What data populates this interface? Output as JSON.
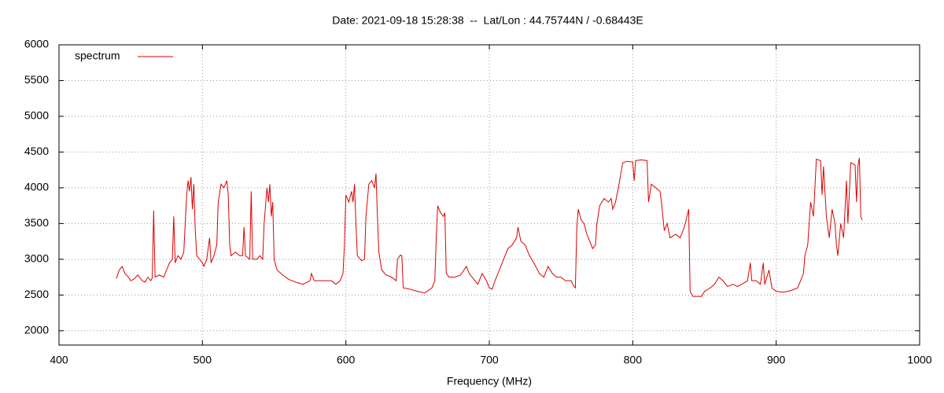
{
  "chart_data": {
    "type": "line",
    "title": "Date: 2021-09-18 15:28:38  --  Lat/Lon : 44.75744N / -0.68443E",
    "xlabel": "Frequency (MHz)",
    "xlim": [
      400,
      1000
    ],
    "xticks": [
      400,
      500,
      600,
      700,
      800,
      900,
      1000
    ],
    "ylim": [
      1800,
      6000
    ],
    "yticks": [
      2000,
      2500,
      3000,
      3500,
      4000,
      4500,
      5000,
      5500,
      6000
    ],
    "grid": true,
    "legend": "top left",
    "x": [
      440,
      442,
      444,
      446,
      448,
      450,
      452,
      455,
      458,
      460,
      462,
      464,
      465,
      466,
      467,
      470,
      473,
      475,
      477,
      479,
      480,
      481,
      483,
      485,
      487,
      488,
      489,
      490,
      491,
      492,
      493,
      494,
      495,
      496,
      498,
      500,
      501,
      503,
      505,
      506,
      508,
      510,
      511,
      513,
      515,
      517,
      518,
      519,
      520,
      523,
      526,
      528,
      529,
      530,
      533,
      534,
      535,
      538,
      540,
      542,
      543,
      544,
      545,
      546,
      547,
      548,
      549,
      550,
      552,
      556,
      560,
      565,
      570,
      575,
      576,
      578,
      585,
      590,
      593,
      596,
      598,
      599,
      600,
      602,
      604,
      605,
      606,
      607,
      608,
      611,
      613,
      614,
      616,
      618,
      620,
      621,
      622,
      623,
      625,
      628,
      632,
      635,
      636,
      638,
      639,
      640,
      645,
      650,
      655,
      660,
      662,
      663,
      664,
      666,
      668,
      669,
      670,
      672,
      676,
      680,
      684,
      686,
      690,
      692,
      695,
      698,
      700,
      702,
      704,
      707,
      710,
      713,
      716,
      719,
      720,
      722,
      725,
      728,
      731,
      735,
      738,
      741,
      744,
      747,
      750,
      753,
      757,
      759,
      760,
      761,
      762,
      764,
      766,
      768,
      770,
      772,
      774,
      775,
      777,
      780,
      783,
      785,
      786,
      788,
      790,
      793,
      796,
      800,
      801,
      802,
      806,
      810,
      811,
      813,
      816,
      819,
      820,
      822,
      824,
      826,
      830,
      833,
      836,
      839,
      840,
      842,
      845,
      848,
      850,
      854,
      857,
      860,
      863,
      866,
      870,
      873,
      876,
      880,
      882,
      883,
      886,
      889,
      891,
      892,
      895,
      897,
      900,
      905,
      910,
      915,
      919,
      920,
      922,
      924,
      926,
      928,
      931,
      932,
      933,
      935,
      937,
      939,
      941,
      942,
      943,
      945,
      947,
      949,
      950,
      952,
      955,
      956,
      957,
      958,
      959,
      960
    ],
    "series": [
      {
        "name": "spectrum",
        "color": "#dd0000",
        "values": [
          2730,
          2850,
          2900,
          2800,
          2760,
          2700,
          2720,
          2780,
          2700,
          2680,
          2750,
          2700,
          2740,
          3680,
          2750,
          2780,
          2750,
          2850,
          2950,
          3000,
          3600,
          2950,
          3050,
          3000,
          3100,
          3500,
          3900,
          4100,
          3950,
          4150,
          3700,
          4050,
          3400,
          3050,
          3000,
          2950,
          2900,
          3000,
          3300,
          2950,
          3050,
          3200,
          3800,
          4050,
          4000,
          4100,
          3900,
          3200,
          3050,
          3100,
          3050,
          3050,
          3450,
          3050,
          3000,
          3950,
          3000,
          3000,
          3050,
          3000,
          3500,
          3750,
          4000,
          3800,
          4050,
          3600,
          3800,
          3000,
          2850,
          2780,
          2720,
          2680,
          2650,
          2700,
          2800,
          2700,
          2700,
          2700,
          2650,
          2700,
          2800,
          3200,
          3900,
          3800,
          3950,
          3800,
          4050,
          3500,
          3050,
          2980,
          3000,
          3600,
          4050,
          4100,
          4000,
          4200,
          3600,
          3100,
          2850,
          2780,
          2750,
          2700,
          3000,
          3060,
          3050,
          2600,
          2580,
          2550,
          2530,
          2600,
          2700,
          3300,
          3750,
          3650,
          3600,
          3650,
          2800,
          2750,
          2750,
          2780,
          2900,
          2800,
          2700,
          2650,
          2800,
          2700,
          2600,
          2580,
          2700,
          2850,
          3000,
          3150,
          3200,
          3300,
          3450,
          3250,
          3200,
          3050,
          2950,
          2800,
          2750,
          2900,
          2800,
          2750,
          2750,
          2700,
          2700,
          2620,
          2600,
          3450,
          3700,
          3550,
          3500,
          3350,
          3250,
          3150,
          3200,
          3500,
          3750,
          3850,
          3800,
          3850,
          3700,
          3800,
          4000,
          4350,
          4370,
          4360,
          4100,
          4380,
          4390,
          4380,
          3800,
          4050,
          4000,
          3950,
          3800,
          3400,
          3500,
          3300,
          3350,
          3300,
          3450,
          3700,
          2550,
          2480,
          2480,
          2480,
          2550,
          2600,
          2650,
          2750,
          2700,
          2620,
          2650,
          2620,
          2650,
          2700,
          2950,
          2700,
          2700,
          2650,
          2950,
          2650,
          2850,
          2600,
          2550,
          2540,
          2560,
          2600,
          2800,
          3050,
          3200,
          3800,
          3600,
          4400,
          4380,
          3900,
          4300,
          3600,
          3300,
          3700,
          3500,
          3200,
          3050,
          3500,
          3300,
          4100,
          3500,
          4350,
          4320,
          3800,
          4300,
          4420,
          3600,
          3550
        ]
      }
    ]
  }
}
